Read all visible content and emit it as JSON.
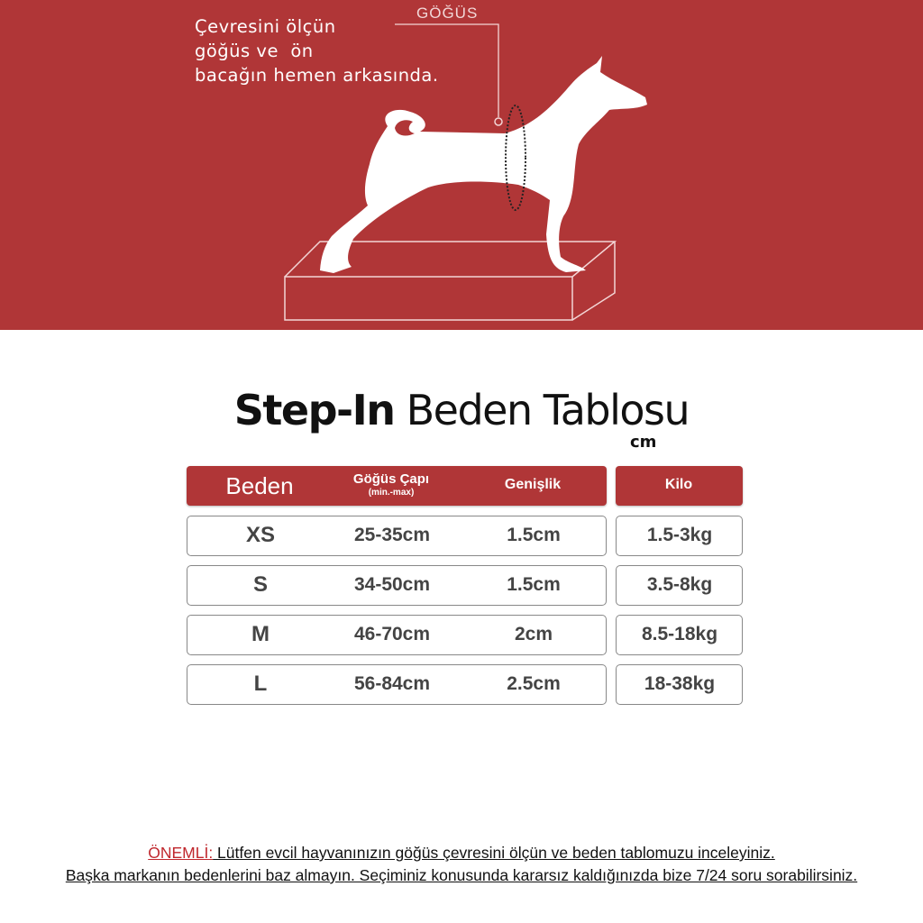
{
  "banner": {
    "instruction_lines": [
      "Çevresini ölçün",
      "göğüs ve  ön",
      "bacağın hemen arkasında."
    ],
    "chest_label": "GÖĞÜS",
    "background_color": "#b03637"
  },
  "title": {
    "bold": "Step-In",
    "rest": " Beden Tablosu",
    "unit": "cm"
  },
  "table": {
    "headers": {
      "size": "Beden",
      "chest": "Göğüs Çapı",
      "chest_sub": "(min.-max)",
      "width": "Genişlik",
      "weight": "Kilo"
    },
    "rows": [
      {
        "size": "XS",
        "chest": "25-35cm",
        "width": "1.5cm",
        "weight": "1.5-3kg"
      },
      {
        "size": "S",
        "chest": "34-50cm",
        "width": "1.5cm",
        "weight": "3.5-8kg"
      },
      {
        "size": "M",
        "chest": "46-70cm",
        "width": "2cm",
        "weight": "8.5-18kg"
      },
      {
        "size": "L",
        "chest": "56-84cm",
        "width": "2.5cm",
        "weight": "18-38kg"
      }
    ]
  },
  "footer": {
    "important": "ÖNEMLİ:",
    "line1": " Lütfen evcil hayvanınızın göğüs çevresini ölçün ve beden tablomuzu inceleyiniz.",
    "line2": "Başka markanın bedenlerini baz almayın. Seçiminiz konusunda kararsız kaldığınızda bize 7/24 soru sorabilirsiniz."
  }
}
